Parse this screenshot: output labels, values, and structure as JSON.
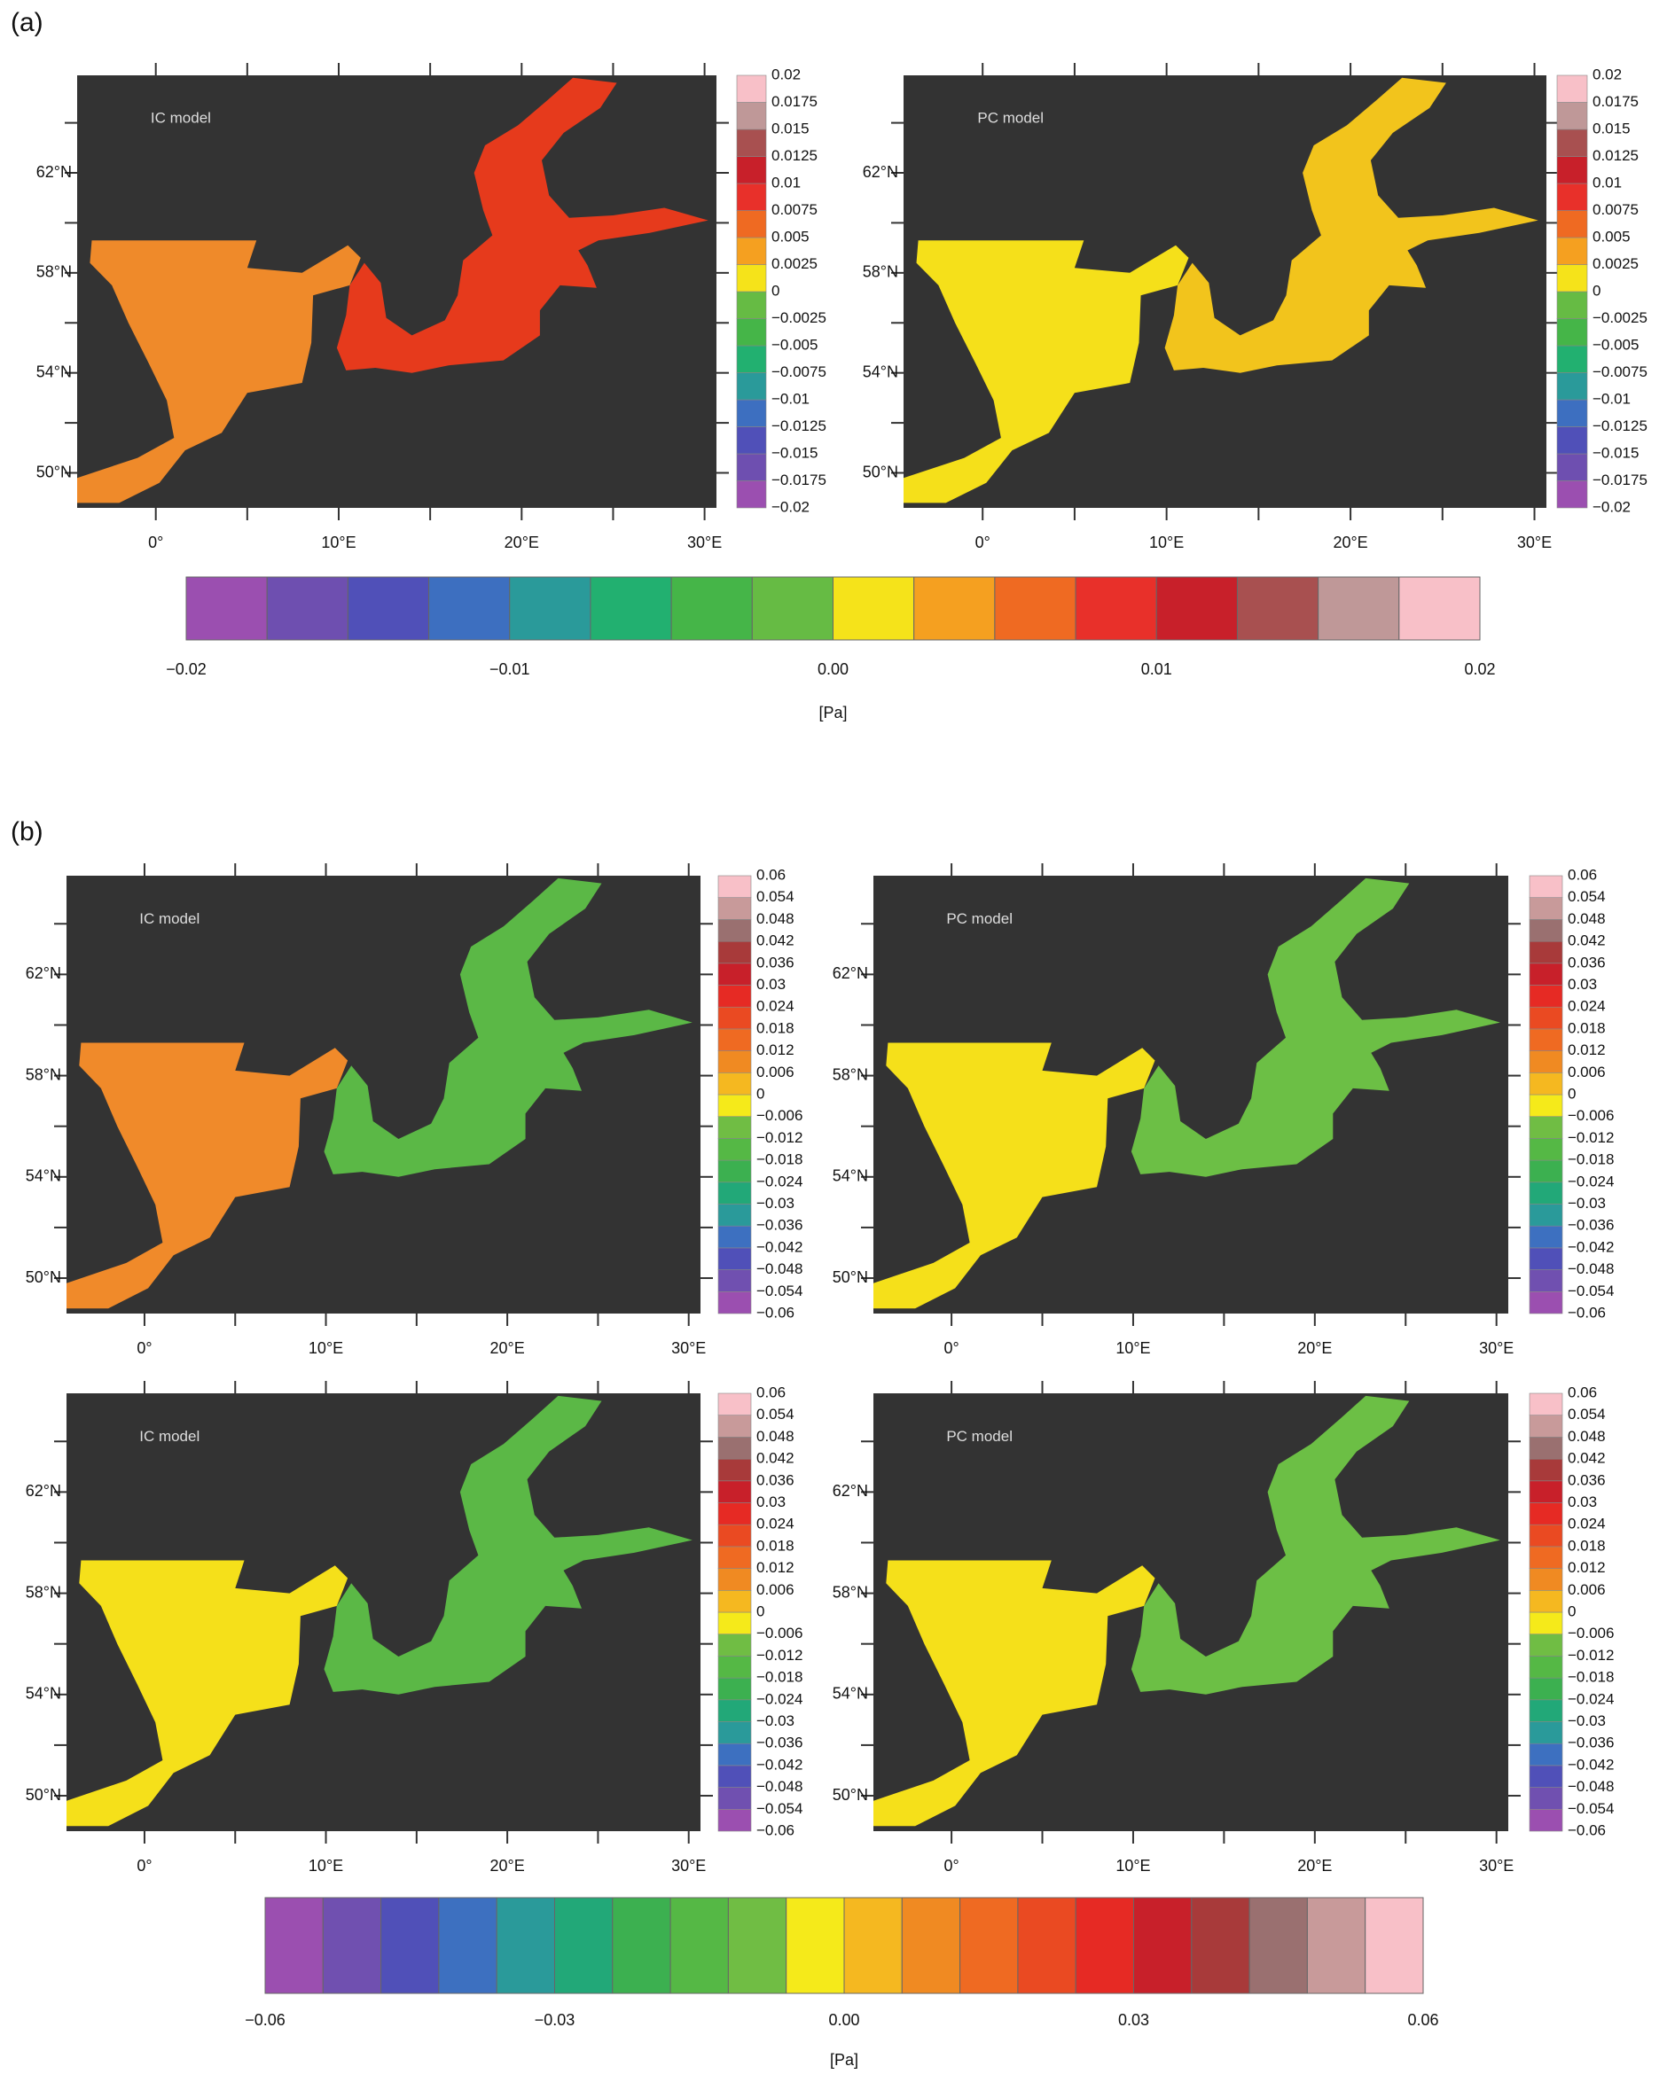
{
  "panels": [
    {
      "label": "(a)",
      "maps": [
        {
          "title": "IC model",
          "colors": [
            "#ef8a2a",
            "#e63a1c"
          ],
          "lat_labels": [
            "62°N",
            "58°N",
            "54°N",
            "50°N"
          ],
          "lon_labels": [
            "0°",
            "10°E",
            "20°E",
            "30°E"
          ],
          "colorbar_labels": [
            "0.02",
            "0.0175",
            "0.015",
            "0.0125",
            "0.01",
            "0.0075",
            "0.005",
            "0.0025",
            "0",
            "−0.0025",
            "−0.005",
            "−0.0075",
            "−0.01",
            "−0.0125",
            "−0.015",
            "−0.0175",
            "−0.02"
          ]
        },
        {
          "title": "PC model",
          "colors": [
            "#f5e01a",
            "#f2c41c"
          ],
          "lat_labels": [
            "62°N",
            "58°N",
            "54°N",
            "50°N"
          ],
          "lon_labels": [
            "0°",
            "10°E",
            "20°E",
            "30°E"
          ],
          "colorbar_labels": [
            "0.02",
            "0.0175",
            "0.015",
            "0.0125",
            "0.01",
            "0.0075",
            "0.005",
            "0.0025",
            "0",
            "−0.0025",
            "−0.005",
            "−0.0075",
            "−0.01",
            "−0.0125",
            "−0.015",
            "−0.0175",
            "−0.02"
          ]
        }
      ],
      "colorbar": {
        "colors": [
          "#9b4fb0",
          "#6e4fb0",
          "#5050b8",
          "#3d6fc0",
          "#2a9a9a",
          "#22b070",
          "#45b548",
          "#66bb44",
          "#f5e31a",
          "#f5a020",
          "#ef6a22",
          "#e8302a",
          "#c8202a",
          "#a85050",
          "#bf9898",
          "#f8c0c8"
        ],
        "labels": [
          "−0.02",
          "−0.01",
          "0.00",
          "0.01",
          "0.02"
        ],
        "unit": "[Pa]"
      }
    },
    {
      "label": "(b)",
      "maps": [
        {
          "title": "IC model",
          "colors": [
            "#f08a2a",
            "#5bb846"
          ],
          "lat_labels": [
            "62°N",
            "58°N",
            "54°N",
            "50°N"
          ],
          "lon_labels": [
            "0°",
            "10°E",
            "20°E",
            "30°E"
          ],
          "colorbar_labels": [
            "0.06",
            "0.054",
            "0.048",
            "0.042",
            "0.036",
            "0.03",
            "0.024",
            "0.018",
            "0.012",
            "0.006",
            "0",
            "−0.006",
            "−0.012",
            "−0.018",
            "−0.024",
            "−0.03",
            "−0.036",
            "−0.042",
            "−0.048",
            "−0.054",
            "−0.06"
          ]
        },
        {
          "title": "PC model",
          "colors": [
            "#f5e01a",
            "#6cbf45"
          ],
          "lat_labels": [
            "62°N",
            "58°N",
            "54°N",
            "50°N"
          ],
          "lon_labels": [
            "0°",
            "10°E",
            "20°E",
            "30°E"
          ],
          "colorbar_labels": [
            "0.06",
            "0.054",
            "0.048",
            "0.042",
            "0.036",
            "0.03",
            "0.024",
            "0.018",
            "0.012",
            "0.006",
            "0",
            "−0.006",
            "−0.012",
            "−0.018",
            "−0.024",
            "−0.03",
            "−0.036",
            "−0.042",
            "−0.048",
            "−0.054",
            "−0.06"
          ]
        },
        {
          "title": "IC model",
          "colors": [
            "#f5e01a",
            "#5bb846"
          ],
          "lat_labels": [
            "62°N",
            "58°N",
            "54°N",
            "50°N"
          ],
          "lon_labels": [
            "0°",
            "10°E",
            "20°E",
            "30°E"
          ],
          "colorbar_labels": [
            "0.06",
            "0.054",
            "0.048",
            "0.042",
            "0.036",
            "0.03",
            "0.024",
            "0.018",
            "0.012",
            "0.006",
            "0",
            "−0.006",
            "−0.012",
            "−0.018",
            "−0.024",
            "−0.03",
            "−0.036",
            "−0.042",
            "−0.048",
            "−0.054",
            "−0.06"
          ]
        },
        {
          "title": "PC model",
          "colors": [
            "#f5e01a",
            "#6cbf45"
          ],
          "lat_labels": [
            "62°N",
            "58°N",
            "54°N",
            "50°N"
          ],
          "lon_labels": [
            "0°",
            "10°E",
            "20°E",
            "30°E"
          ],
          "colorbar_labels": [
            "0.06",
            "0.054",
            "0.048",
            "0.042",
            "0.036",
            "0.03",
            "0.024",
            "0.018",
            "0.012",
            "0.006",
            "0",
            "−0.006",
            "−0.012",
            "−0.018",
            "−0.024",
            "−0.03",
            "−0.036",
            "−0.042",
            "−0.048",
            "−0.054",
            "−0.06"
          ]
        }
      ],
      "colorbar": {
        "colors": [
          "#9b4fb0",
          "#7050b0",
          "#5050b8",
          "#3d70c0",
          "#2a9a9a",
          "#22a878",
          "#3cb050",
          "#55b845",
          "#70bd44",
          "#f5ea1a",
          "#f5b820",
          "#f08a22",
          "#ef6a22",
          "#ea4a22",
          "#e62a24",
          "#c8202a",
          "#a83a3a",
          "#9a7070",
          "#c89a9a",
          "#f8c0c8"
        ],
        "labels": [
          "−0.06",
          "−0.03",
          "0.00",
          "0.03",
          "0.06"
        ],
        "unit": "[Pa]"
      }
    }
  ]
}
